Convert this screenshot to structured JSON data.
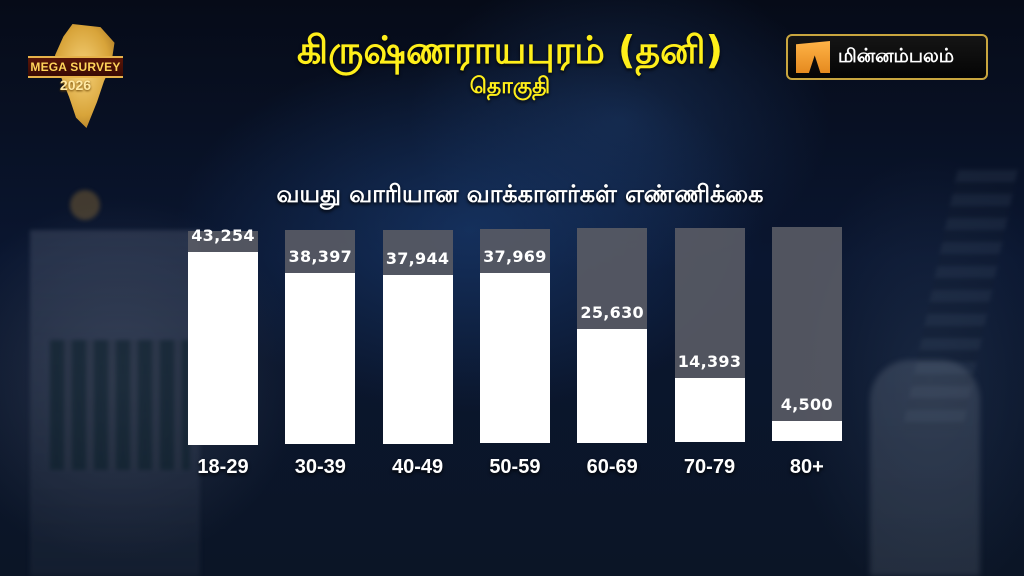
{
  "header": {
    "badge": {
      "banner": "MEGA SURVEY",
      "year": "2026"
    },
    "title": "கிருஷ்ணராயபுரம் (தனி)",
    "subtitle": "தொகுதி",
    "brand": {
      "name": "மின்னம்பலம்",
      "accent": "#f39a2b",
      "border": "#c9a63f"
    }
  },
  "chart_heading": "வயது வாரியான வாக்காளர்கள் எண்ணிக்கை",
  "colors": {
    "title": "#ffef1a",
    "bar_fill": "#ffffff",
    "bar_track": "#585a64"
  },
  "bars": [
    {
      "label": "18-29",
      "value": 43254,
      "display": "43,254"
    },
    {
      "label": "30-39",
      "value": 38397,
      "display": "38,397"
    },
    {
      "label": "40-49",
      "value": 37944,
      "display": "37,944"
    },
    {
      "label": "50-59",
      "value": 37969,
      "display": "37,969"
    },
    {
      "label": "60-69",
      "value": 25630,
      "display": "25,630"
    },
    {
      "label": "70-79",
      "value": 14393,
      "display": "14,393"
    },
    {
      "label": "80+",
      "value": 4500,
      "display": "4,500"
    }
  ],
  "chart_data": {
    "type": "bar",
    "title": "வயது வாரியான வாக்காளர்கள் எண்ணிக்கை",
    "subtitle": "கிருஷ்ணராயபுரம் (தனி) தொகுதி",
    "categories": [
      "18-29",
      "30-39",
      "40-49",
      "50-59",
      "60-69",
      "70-79",
      "80+"
    ],
    "values": [
      43254,
      38397,
      37944,
      37969,
      25630,
      14393,
      4500
    ],
    "xlabel": "",
    "ylabel": "",
    "ylim": [
      0,
      48000
    ],
    "grid": false,
    "legend": null,
    "data_labels": true
  }
}
